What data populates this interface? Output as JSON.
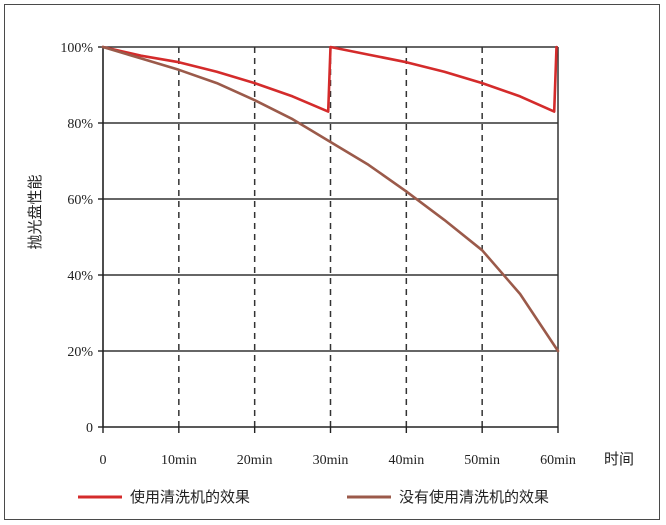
{
  "chart_data": {
    "type": "line",
    "title": "",
    "xlabel": "时间",
    "ylabel": "抛光盘性能",
    "xlim": [
      0,
      60
    ],
    "ylim": [
      0,
      100
    ],
    "x_ticks": [
      0,
      10,
      20,
      30,
      40,
      50,
      60
    ],
    "x_tick_labels": [
      "0",
      "10min",
      "20min",
      "30min",
      "40min",
      "50min",
      "60min"
    ],
    "y_ticks": [
      0,
      20,
      40,
      60,
      80,
      100
    ],
    "y_tick_labels": [
      "0",
      "20%",
      "40%",
      "60%",
      "80%",
      "100%"
    ],
    "grid": {
      "horizontal": "solid",
      "vertical": "dashed"
    },
    "legend_position": "bottom",
    "series": [
      {
        "name": "使用清洗机的效果",
        "color": "#d42b2b",
        "points": [
          [
            0,
            100
          ],
          [
            5,
            97.7
          ],
          [
            10,
            96
          ],
          [
            15,
            93.5
          ],
          [
            20,
            90.5
          ],
          [
            25,
            87
          ],
          [
            29.7,
            83
          ],
          [
            30,
            100
          ],
          [
            35,
            98
          ],
          [
            40,
            96
          ],
          [
            45,
            93.5
          ],
          [
            50,
            90.5
          ],
          [
            55,
            87
          ],
          [
            59.5,
            83
          ],
          [
            59.8,
            100
          ]
        ]
      },
      {
        "name": "没有使用清洗机的效果",
        "color": "#9b5a4a",
        "points": [
          [
            0,
            100
          ],
          [
            5,
            97
          ],
          [
            10,
            94
          ],
          [
            15,
            90.5
          ],
          [
            20,
            86
          ],
          [
            25,
            81
          ],
          [
            30,
            75
          ],
          [
            35,
            69
          ],
          [
            40,
            62
          ],
          [
            45,
            54.5
          ],
          [
            50,
            46.5
          ],
          [
            55,
            35
          ],
          [
            60,
            20
          ]
        ]
      }
    ]
  }
}
